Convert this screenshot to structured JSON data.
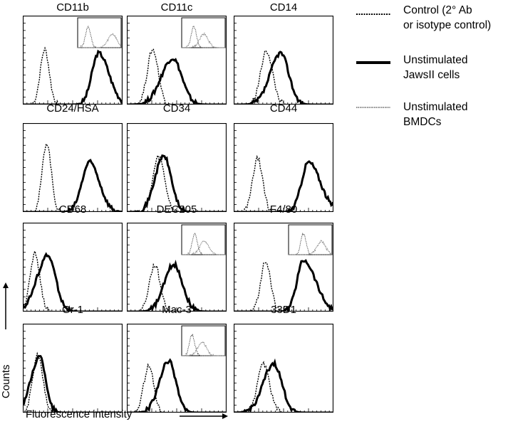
{
  "panels": [
    {
      "title": "CD11b",
      "control": {
        "mu": 0.22,
        "sd": 0.045,
        "h": 0.62
      },
      "sample": {
        "mu": 0.76,
        "sd": 0.09,
        "h": 0.58,
        "skew": -0.5
      },
      "inset": true
    },
    {
      "title": "CD11c",
      "control": {
        "mu": 0.26,
        "sd": 0.055,
        "h": 0.62
      },
      "sample": {
        "mu": 0.46,
        "sd": 0.1,
        "h": 0.52,
        "skew": 0.3
      },
      "inset": true
    },
    {
      "title": "CD14",
      "control": {
        "mu": 0.33,
        "sd": 0.06,
        "h": 0.6
      },
      "sample": {
        "mu": 0.47,
        "sd": 0.09,
        "h": 0.58,
        "skew": 0.3
      },
      "inset": false
    },
    {
      "title": "CD24/HSA",
      "control": {
        "mu": 0.24,
        "sd": 0.045,
        "h": 0.78
      },
      "sample": {
        "mu": 0.67,
        "sd": 0.09,
        "h": 0.56,
        "skew": -0.3
      },
      "inset": false
    },
    {
      "title": "CD34",
      "control": {
        "mu": 0.32,
        "sd": 0.06,
        "h": 0.62
      },
      "sample": {
        "mu": 0.37,
        "sd": 0.08,
        "h": 0.63,
        "skew": 0.2
      },
      "inset": false
    },
    {
      "title": "CD44",
      "control": {
        "mu": 0.24,
        "sd": 0.05,
        "h": 0.6
      },
      "sample": {
        "mu": 0.75,
        "sd": 0.1,
        "h": 0.56,
        "skew": -0.6
      },
      "inset": false
    },
    {
      "title": "CD68",
      "control": {
        "mu": 0.12,
        "sd": 0.05,
        "h": 0.65
      },
      "sample": {
        "mu": 0.25,
        "sd": 0.09,
        "h": 0.63,
        "skew": 0.4
      },
      "inset": false
    },
    {
      "title": "DEC205",
      "control": {
        "mu": 0.28,
        "sd": 0.055,
        "h": 0.52
      },
      "sample": {
        "mu": 0.47,
        "sd": 0.09,
        "h": 0.53,
        "skew": 0.1
      },
      "inset": true
    },
    {
      "title": "F4/80",
      "control": {
        "mu": 0.32,
        "sd": 0.05,
        "h": 0.56
      },
      "sample": {
        "mu": 0.7,
        "sd": 0.1,
        "h": 0.58,
        "skew": -0.7
      },
      "inset": true
    },
    {
      "title": "Gr-1",
      "control": {
        "mu": 0.15,
        "sd": 0.05,
        "h": 0.65
      },
      "sample": {
        "mu": 0.17,
        "sd": 0.07,
        "h": 0.63,
        "skew": 0.5
      },
      "inset": false
    },
    {
      "title": "Mac-3",
      "control": {
        "mu": 0.22,
        "sd": 0.05,
        "h": 0.53
      },
      "sample": {
        "mu": 0.42,
        "sd": 0.08,
        "h": 0.58,
        "skew": 0.3
      },
      "inset": true
    },
    {
      "title": "33D1",
      "control": {
        "mu": 0.3,
        "sd": 0.06,
        "h": 0.55
      },
      "sample": {
        "mu": 0.4,
        "sd": 0.09,
        "h": 0.55,
        "skew": 0.3
      },
      "inset": false
    }
  ],
  "legend": [
    {
      "style": "dotted",
      "lines": [
        "Control (2° Ab",
        "or isotype control)"
      ]
    },
    {
      "style": "thick",
      "lines": [
        "Unstimulated",
        "JawsII cells"
      ]
    },
    {
      "style": "grey",
      "lines": [
        "Unstimulated",
        "BMDCs"
      ]
    }
  ],
  "axes": {
    "x_label": "Fluorescence intensity",
    "y_label": "Counts"
  },
  "colors": {
    "axis": "#000000",
    "thick": "#000000",
    "control": "#000000",
    "bmdc": "#8a8a8a"
  }
}
